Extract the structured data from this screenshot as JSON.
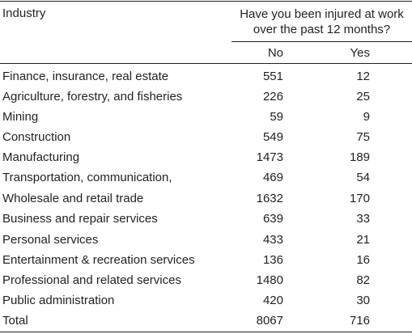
{
  "table": {
    "industry_header": "Industry",
    "question_header": "Have you been injured at work over the past 12 months?",
    "no_header": "No",
    "yes_header": "Yes",
    "rows": [
      {
        "industry": "Finance, insurance, real estate",
        "no": "551",
        "yes": "12"
      },
      {
        "industry": "Agriculture, forestry, and fisheries",
        "no": "226",
        "yes": "25"
      },
      {
        "industry": "Mining",
        "no": "59",
        "yes": "9"
      },
      {
        "industry": "Construction",
        "no": "549",
        "yes": "75"
      },
      {
        "industry": "Manufacturing",
        "no": "1473",
        "yes": "189"
      },
      {
        "industry": "Transportation, communication,",
        "no": "469",
        "yes": "54"
      },
      {
        "industry": "Wholesale and retail trade",
        "no": "1632",
        "yes": "170"
      },
      {
        "industry": "Business and repair services",
        "no": "639",
        "yes": "33"
      },
      {
        "industry": "Personal services",
        "no": "433",
        "yes": "21"
      },
      {
        "industry": "Entertainment & recreation services",
        "no": "136",
        "yes": "16"
      },
      {
        "industry": "Professional and related services",
        "no": "1480",
        "yes": "82"
      },
      {
        "industry": "Public administration",
        "no": "420",
        "yes": "30"
      },
      {
        "industry": "Total",
        "no": "8067",
        "yes": "716"
      }
    ]
  }
}
